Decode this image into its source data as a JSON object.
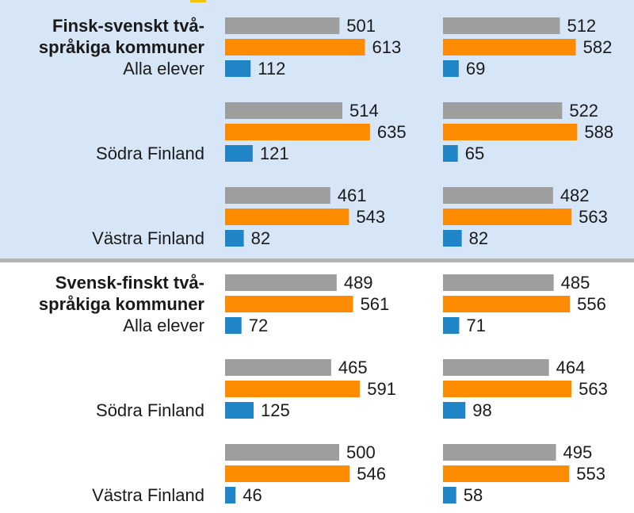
{
  "colors": {
    "top_band": "#d6e6f7",
    "divider": "#b5b5b5",
    "accent": "#f2c400",
    "gray_bar": "#9e9e9e",
    "orange_bar": "#ff8c00",
    "blue_bar": "#1f85c7"
  },
  "chart_data": {
    "type": "bar",
    "orientation": "horizontal",
    "legend": "none",
    "grid": false,
    "xlim": [
      0,
      650
    ],
    "groups": [
      {
        "title_lines": [
          "Finsk-svenskt två-",
          "språkiga kommuner"
        ],
        "rows": [
          {
            "label": "Alla elever",
            "panels": [
              {
                "values": [
                  501,
                  613,
                  112
                ]
              },
              {
                "values": [
                  512,
                  582,
                  69
                ]
              }
            ]
          },
          {
            "label": "Södra Finland",
            "panels": [
              {
                "values": [
                  514,
                  635,
                  121
                ]
              },
              {
                "values": [
                  522,
                  588,
                  65
                ]
              }
            ]
          },
          {
            "label": "Västra Finland",
            "panels": [
              {
                "values": [
                  461,
                  543,
                  82
                ]
              },
              {
                "values": [
                  482,
                  563,
                  82
                ]
              }
            ]
          }
        ]
      },
      {
        "title_lines": [
          "Svensk-finskt två-",
          "språkiga kommuner"
        ],
        "rows": [
          {
            "label": "Alla elever",
            "panels": [
              {
                "values": [
                  489,
                  561,
                  72
                ]
              },
              {
                "values": [
                  485,
                  556,
                  71
                ]
              }
            ]
          },
          {
            "label": "Södra Finland",
            "panels": [
              {
                "values": [
                  465,
                  591,
                  125
                ]
              },
              {
                "values": [
                  464,
                  563,
                  98
                ]
              }
            ]
          },
          {
            "label": "Västra Finland",
            "panels": [
              {
                "values": [
                  500,
                  546,
                  46
                ]
              },
              {
                "values": [
                  495,
                  553,
                  58
                ]
              }
            ]
          }
        ]
      }
    ]
  }
}
